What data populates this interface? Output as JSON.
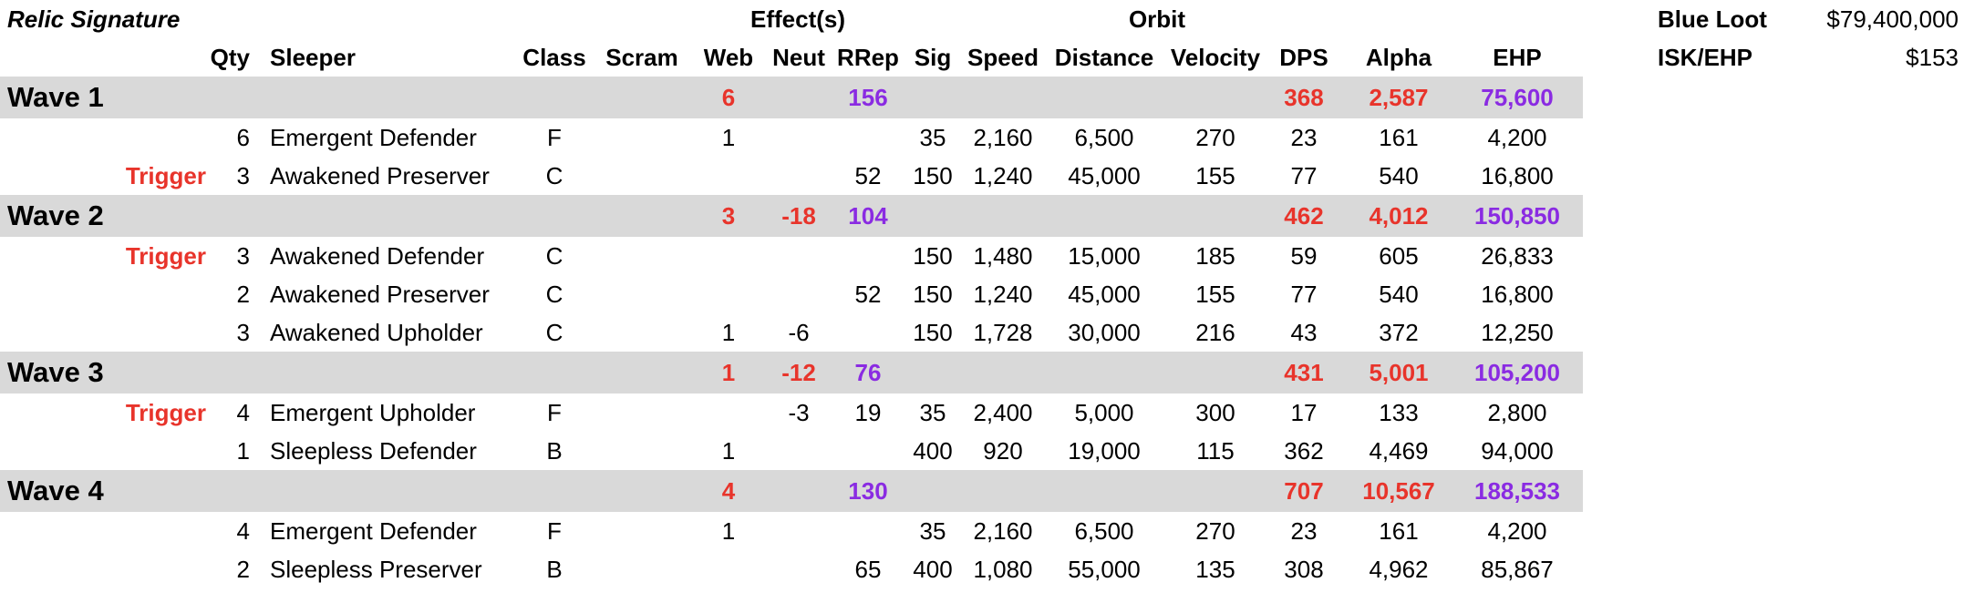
{
  "header": {
    "title": "Relic Signature",
    "group_effects": "Effect(s)",
    "group_orbit": "Orbit",
    "columns": {
      "qty": "Qty",
      "sleeper": "Sleeper",
      "class": "Class",
      "scram": "Scram",
      "web": "Web",
      "neut": "Neut",
      "rrep": "RRep",
      "sig": "Sig",
      "speed": "Speed",
      "distance": "Distance",
      "velocity": "Velocity",
      "dps": "DPS",
      "alpha": "Alpha",
      "ehp": "EHP"
    }
  },
  "summary": {
    "blue_loot_label": "Blue Loot",
    "blue_loot_value": "$79,400,000",
    "isk_ehp_label": "ISK/EHP",
    "isk_ehp_value": "$153"
  },
  "colors": {
    "red": "#e8342b",
    "purple": "#8a2be2",
    "wave_bg": "#d9d9d9"
  },
  "waves": [
    {
      "name": "Wave 1",
      "totals": {
        "web": "6",
        "neut": "",
        "rrep": "156",
        "dps": "368",
        "alpha": "2,587",
        "ehp": "75,600"
      },
      "rows": [
        {
          "trigger": "",
          "qty": "6",
          "sleeper": "Emergent Defender",
          "class": "F",
          "scram": "",
          "web": "1",
          "neut": "",
          "rrep": "",
          "sig": "35",
          "speed": "2,160",
          "distance": "6,500",
          "velocity": "270",
          "dps": "23",
          "alpha": "161",
          "ehp": "4,200"
        },
        {
          "trigger": "Trigger",
          "qty": "3",
          "sleeper": "Awakened Preserver",
          "class": "C",
          "scram": "",
          "web": "",
          "neut": "",
          "rrep": "52",
          "sig": "150",
          "speed": "1,240",
          "distance": "45,000",
          "velocity": "155",
          "dps": "77",
          "alpha": "540",
          "ehp": "16,800"
        }
      ]
    },
    {
      "name": "Wave 2",
      "totals": {
        "web": "3",
        "neut": "-18",
        "rrep": "104",
        "dps": "462",
        "alpha": "4,012",
        "ehp": "150,850"
      },
      "rows": [
        {
          "trigger": "Trigger",
          "qty": "3",
          "sleeper": "Awakened Defender",
          "class": "C",
          "scram": "",
          "web": "",
          "neut": "",
          "rrep": "",
          "sig": "150",
          "speed": "1,480",
          "distance": "15,000",
          "velocity": "185",
          "dps": "59",
          "alpha": "605",
          "ehp": "26,833"
        },
        {
          "trigger": "",
          "qty": "2",
          "sleeper": "Awakened Preserver",
          "class": "C",
          "scram": "",
          "web": "",
          "neut": "",
          "rrep": "52",
          "sig": "150",
          "speed": "1,240",
          "distance": "45,000",
          "velocity": "155",
          "dps": "77",
          "alpha": "540",
          "ehp": "16,800"
        },
        {
          "trigger": "",
          "qty": "3",
          "sleeper": "Awakened Upholder",
          "class": "C",
          "scram": "",
          "web": "1",
          "neut": "-6",
          "rrep": "",
          "sig": "150",
          "speed": "1,728",
          "distance": "30,000",
          "velocity": "216",
          "dps": "43",
          "alpha": "372",
          "ehp": "12,250"
        }
      ]
    },
    {
      "name": "Wave 3",
      "totals": {
        "web": "1",
        "neut": "-12",
        "rrep": "76",
        "dps": "431",
        "alpha": "5,001",
        "ehp": "105,200"
      },
      "rows": [
        {
          "trigger": "Trigger",
          "qty": "4",
          "sleeper": "Emergent Upholder",
          "class": "F",
          "scram": "",
          "web": "",
          "neut": "-3",
          "rrep": "19",
          "sig": "35",
          "speed": "2,400",
          "distance": "5,000",
          "velocity": "300",
          "dps": "17",
          "alpha": "133",
          "ehp": "2,800"
        },
        {
          "trigger": "",
          "qty": "1",
          "sleeper": "Sleepless Defender",
          "class": "B",
          "scram": "",
          "web": "1",
          "neut": "",
          "rrep": "",
          "sig": "400",
          "speed": "920",
          "distance": "19,000",
          "velocity": "115",
          "dps": "362",
          "alpha": "4,469",
          "ehp": "94,000"
        }
      ]
    },
    {
      "name": "Wave 4",
      "totals": {
        "web": "4",
        "neut": "",
        "rrep": "130",
        "dps": "707",
        "alpha": "10,567",
        "ehp": "188,533"
      },
      "rows": [
        {
          "trigger": "",
          "qty": "4",
          "sleeper": "Emergent Defender",
          "class": "F",
          "scram": "",
          "web": "1",
          "neut": "",
          "rrep": "",
          "sig": "35",
          "speed": "2,160",
          "distance": "6,500",
          "velocity": "270",
          "dps": "23",
          "alpha": "161",
          "ehp": "4,200"
        },
        {
          "trigger": "",
          "qty": "2",
          "sleeper": "Sleepless Preserver",
          "class": "B",
          "scram": "",
          "web": "",
          "neut": "",
          "rrep": "65",
          "sig": "400",
          "speed": "1,080",
          "distance": "55,000",
          "velocity": "135",
          "dps": "308",
          "alpha": "4,962",
          "ehp": "85,867"
        }
      ]
    }
  ]
}
